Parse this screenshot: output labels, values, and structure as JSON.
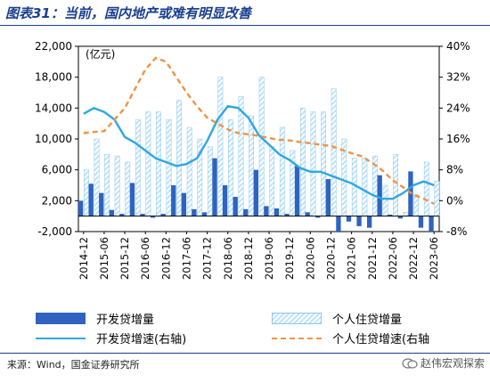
{
  "header": {
    "title": "图表31：当前，国内地产或难有明显改善"
  },
  "footer": {
    "source": "来源：Wind，国金证券研究所",
    "watermark": "赵伟宏观探索"
  },
  "colors": {
    "dev_loans": "#2f63bf",
    "mortgage_loans": "#bfe3f8",
    "dev_growth": "#2fa7e1",
    "mortgage_growth": "#ee9447"
  },
  "chart_data": {
    "type": "bar",
    "unit_label": "(亿元)",
    "x_tick_labels": [
      "2014-12",
      "2015-06",
      "2015-12",
      "2016-06",
      "2016-12",
      "2017-06",
      "2017-12",
      "2018-06",
      "2018-12",
      "2019-06",
      "2019-12",
      "2020-06",
      "2020-12",
      "2021-06",
      "2021-12",
      "2022-06",
      "2022-12",
      "2023-06"
    ],
    "y_left": {
      "min": -2000,
      "max": 22000,
      "ticks": [
        "-2,000",
        "2,000",
        "6,000",
        "10,000",
        "14,000",
        "18,000",
        "22,000"
      ],
      "tick_values": [
        -2000,
        2000,
        6000,
        10000,
        14000,
        18000,
        22000
      ]
    },
    "y_right": {
      "min": -8,
      "max": 40,
      "ticks": [
        "-8%",
        "0%",
        "8%",
        "16%",
        "24%",
        "32%",
        "40%"
      ],
      "tick_values": [
        -8,
        0,
        8,
        16,
        24,
        32,
        40
      ]
    },
    "quarters": [
      "2014-12",
      "2015-03",
      "2015-06",
      "2015-09",
      "2015-12",
      "2016-03",
      "2016-06",
      "2016-09",
      "2016-12",
      "2017-03",
      "2017-06",
      "2017-09",
      "2017-12",
      "2018-03",
      "2018-06",
      "2018-09",
      "2018-12",
      "2019-03",
      "2019-06",
      "2019-09",
      "2019-12",
      "2020-03",
      "2020-06",
      "2020-09",
      "2020-12",
      "2021-03",
      "2021-06",
      "2021-09",
      "2021-12",
      "2022-03",
      "2022-06",
      "2022-09",
      "2022-12",
      "2023-03",
      "2023-06"
    ],
    "legend": [
      {
        "key": "dev_loans",
        "label": "开发贷增量"
      },
      {
        "key": "mortgage_loans",
        "label": "个人住贷增量"
      },
      {
        "key": "dev_growth",
        "label": "开发贷增速(右轴)"
      },
      {
        "key": "mortgage_growth",
        "label": "个人住贷增速(右轴"
      }
    ],
    "series": [
      {
        "key": "dev_loans",
        "axis": "left",
        "kind": "bar",
        "values": [
          2000,
          4200,
          3000,
          800,
          300,
          4300,
          300,
          -200,
          300,
          4000,
          3000,
          900,
          500,
          7500,
          4000,
          2500,
          900,
          6000,
          1300,
          1000,
          300,
          6500,
          500,
          -200,
          4800,
          -2100,
          -700,
          -1300,
          -1500,
          5300,
          200,
          -300,
          5800,
          -1500,
          -2000
        ]
      },
      {
        "key": "mortgage_loans",
        "axis": "left",
        "kind": "hatched_bar",
        "values": [
          6000,
          10000,
          8000,
          7800,
          7000,
          12500,
          13500,
          13500,
          12500,
          15000,
          11500,
          10000,
          9000,
          18000,
          12500,
          15500,
          13000,
          18000,
          9000,
          11500,
          8500,
          14000,
          13500,
          13500,
          16500,
          10000,
          7500,
          7500,
          7800,
          4000,
          8000,
          500,
          2800,
          7000,
          4500
        ]
      },
      {
        "key": "dev_growth",
        "axis": "right",
        "kind": "line",
        "values": [
          22.5,
          24,
          23,
          21,
          16.5,
          15,
          13,
          11,
          10,
          9,
          9.5,
          11,
          15.5,
          21,
          24.5,
          24,
          21.5,
          17,
          14.5,
          12,
          10.5,
          8.5,
          7.5,
          7.5,
          6.5,
          5.5,
          4.5,
          3,
          1.5,
          0.5,
          0.5,
          2,
          4,
          5,
          4
        ]
      },
      {
        "key": "mortgage_growth",
        "axis": "right",
        "kind": "line",
        "dashed": true,
        "values": [
          17.5,
          17.8,
          18,
          21,
          24,
          29,
          34,
          37,
          36,
          32,
          28,
          24.5,
          21.5,
          20,
          18.5,
          17.5,
          17.2,
          16.8,
          16.2,
          15.8,
          15.6,
          15.2,
          14.9,
          14.5,
          14.2,
          13.2,
          12.3,
          11.5,
          9.8,
          7.8,
          5.3,
          3.5,
          1.5,
          0.5,
          -0.8
        ]
      }
    ]
  }
}
